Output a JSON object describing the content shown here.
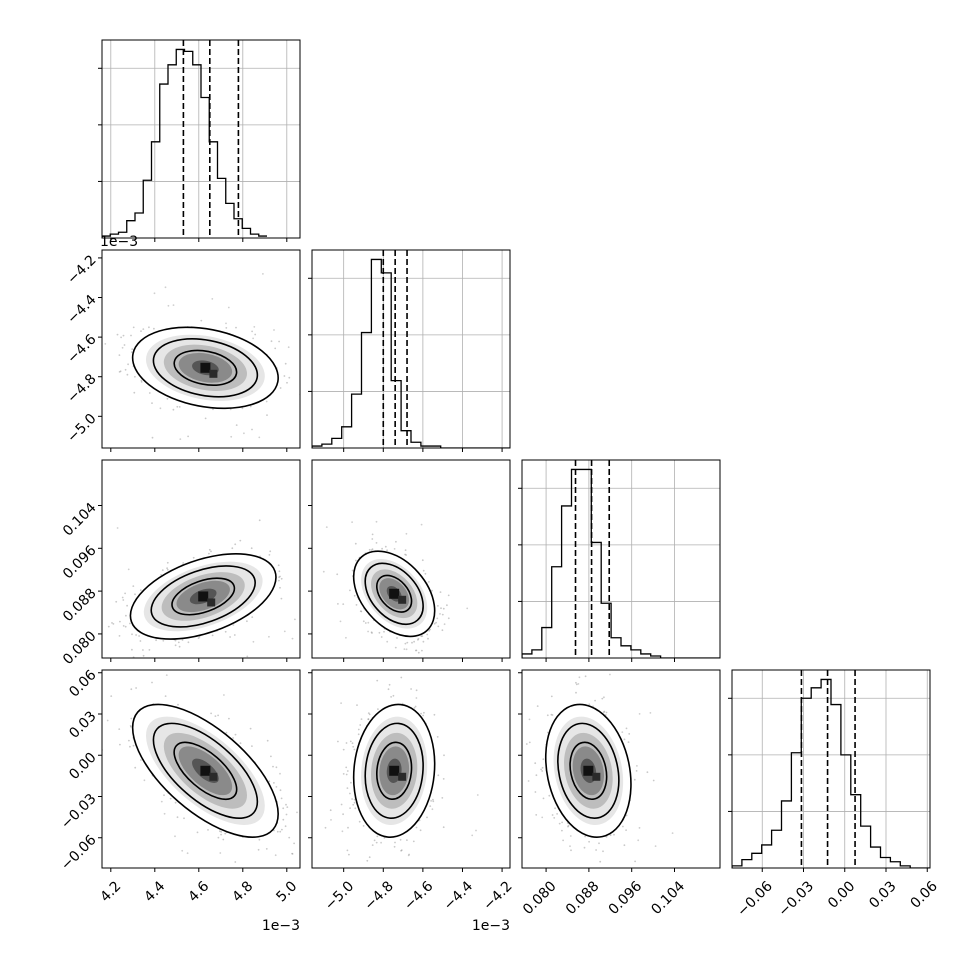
{
  "chart_data": {
    "type": "corner",
    "parameters": [
      {
        "range": [
          0.00416,
          0.00506
        ],
        "ticks": [
          0.0042,
          0.0044,
          0.0046,
          0.0048,
          0.005
        ],
        "tick_labels": [
          "4.2",
          "4.4",
          "4.6",
          "4.8",
          "5.0"
        ],
        "offset_text": "1e−3",
        "quantiles": [
          0.00453,
          0.00465,
          0.00478
        ],
        "histogram": {
          "bin_start": 0.00416,
          "bin_width": 3.75e-05,
          "counts": [
            1,
            2,
            3,
            9,
            13,
            30,
            50,
            80,
            90,
            98,
            97,
            90,
            73,
            50,
            31,
            18,
            10,
            5,
            2,
            1
          ]
        }
      },
      {
        "range": [
          -0.00516,
          -0.00416
        ],
        "ticks": [
          -0.005,
          -0.0048,
          -0.0046,
          -0.0044,
          -0.0042
        ],
        "tick_labels": [
          "−5.0",
          "−4.8",
          "−4.6",
          "−4.4",
          "−4.2"
        ],
        "offset_text": "1e−3",
        "quantiles": [
          -0.0048,
          -0.00474,
          -0.00468
        ],
        "histogram": {
          "bin_start": -0.00516,
          "bin_width": 5e-05,
          "counts": [
            1,
            2,
            5,
            11,
            28,
            60,
            98,
            91,
            35,
            9,
            3,
            1,
            1,
            0,
            0,
            0,
            0,
            0,
            0,
            0
          ]
        }
      },
      {
        "range": [
          0.0755,
          0.1125
        ],
        "ticks": [
          0.08,
          0.088,
          0.096,
          0.104
        ],
        "tick_labels": [
          "0.080",
          "0.088",
          "0.096",
          "0.104"
        ],
        "offset_text": "",
        "quantiles": [
          0.0855,
          0.0885,
          0.0918
        ],
        "histogram": {
          "bin_start": 0.0755,
          "bin_width": 0.00185,
          "counts": [
            2,
            4,
            15,
            45,
            75,
            93,
            93,
            57,
            27,
            10,
            6,
            4,
            2,
            1,
            0,
            0,
            0,
            0,
            0,
            0
          ]
        }
      },
      {
        "range": [
          -0.082,
          0.062
        ],
        "ticks": [
          -0.06,
          -0.03,
          0.0,
          0.03,
          0.06
        ],
        "tick_labels": [
          "−0.06",
          "−0.03",
          "0.00",
          "0.03",
          "0.06"
        ],
        "offset_text": "",
        "quantiles": [
          -0.0315,
          -0.0125,
          0.0075
        ],
        "histogram": {
          "bin_start": -0.082,
          "bin_width": 0.0072,
          "counts": [
            1,
            4,
            7,
            11,
            18,
            32,
            55,
            81,
            86,
            90,
            78,
            54,
            35,
            20,
            10,
            5,
            3,
            1,
            0,
            0
          ]
        }
      }
    ],
    "pairs": [
      {
        "x": 0,
        "y": 1,
        "center": [
          0.00463,
          -0.004755
        ],
        "sigma": [
          0.000135,
          8.35e-05
        ],
        "corr": -0.25
      },
      {
        "x": 0,
        "y": 2,
        "center": [
          0.00462,
          0.087
        ],
        "sigma": [
          0.000135,
          0.00325
        ],
        "corr": 0.45
      },
      {
        "x": 1,
        "y": 2,
        "center": [
          -0.004745,
          0.0875
        ],
        "sigma": [
          8.35e-05,
          0.00325
        ],
        "corr": -0.4
      },
      {
        "x": 0,
        "y": 3,
        "center": [
          0.00463,
          -0.0113
        ],
        "sigma": [
          0.000135,
          0.0197
        ],
        "corr": -0.65
      },
      {
        "x": 1,
        "y": 3,
        "center": [
          -0.004745,
          -0.0113
        ],
        "sigma": [
          8.35e-05,
          0.0197
        ],
        "corr": 0.1
      },
      {
        "x": 2,
        "y": 3,
        "center": [
          0.0879,
          -0.0113
        ],
        "sigma": [
          0.00325,
          0.0197
        ],
        "corr": -0.2
      }
    ],
    "grid": true
  },
  "colors": {
    "line": "#000000",
    "grid": "#b0b0b0",
    "scatter": "#888888"
  }
}
